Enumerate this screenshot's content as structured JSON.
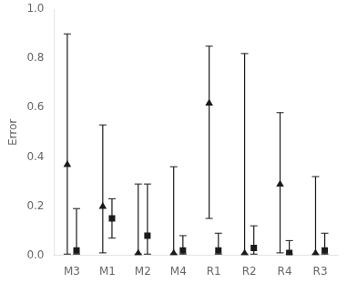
{
  "chart_data": {
    "type": "scatter",
    "categories": [
      "M3",
      "M1",
      "M2",
      "M4",
      "R1",
      "R2",
      "R4",
      "R3"
    ],
    "ylabel": "Error",
    "ylim": [
      0.0,
      1.0
    ],
    "yticks": [
      {
        "value": 0.0,
        "label": "0.0"
      },
      0.2,
      0.4,
      0.6,
      0.8,
      {
        "value": 1.0,
        "label": "1.0"
      }
    ],
    "grid": false,
    "series": [
      {
        "marker": "triangle",
        "color": "#1a1a1a",
        "values": [
          0.37,
          0.2,
          0.01,
          0.01,
          0.62,
          0.01,
          0.29,
          0.01
        ],
        "ci_low": [
          0.005,
          0.01,
          0.005,
          0.005,
          0.15,
          0.005,
          0.01,
          0.005
        ],
        "ci_high": [
          0.9,
          0.53,
          0.29,
          0.36,
          0.85,
          0.82,
          0.58,
          0.32
        ]
      },
      {
        "marker": "square",
        "color": "#1a1a1a",
        "values": [
          0.02,
          0.15,
          0.08,
          0.02,
          0.02,
          0.03,
          0.01,
          0.02
        ],
        "ci_low": [
          0.005,
          0.07,
          0.005,
          0.005,
          0.005,
          0.005,
          0.005,
          0.005
        ],
        "ci_high": [
          0.19,
          0.23,
          0.29,
          0.08,
          0.09,
          0.12,
          0.06,
          0.09
        ]
      }
    ]
  }
}
